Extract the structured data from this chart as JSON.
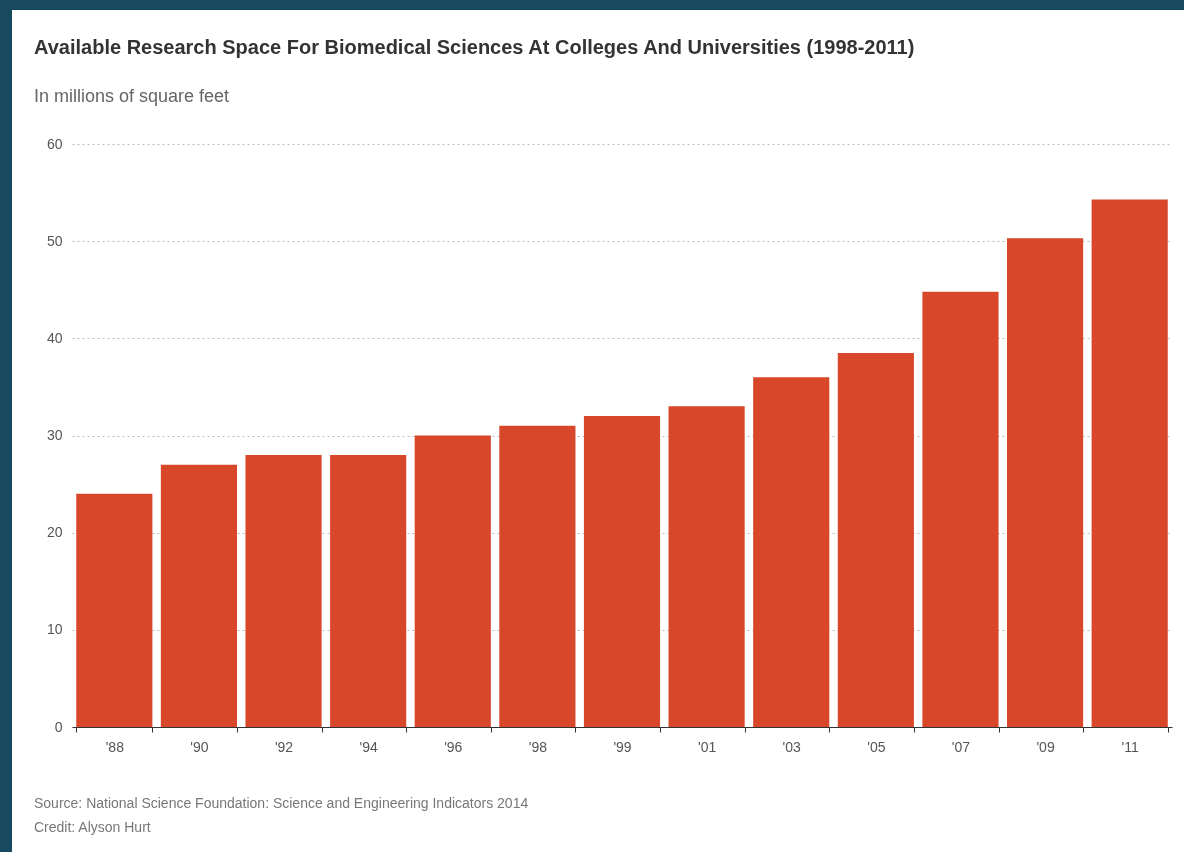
{
  "chart_data": {
    "type": "bar",
    "title": "Available Research Space For Biomedical Sciences At Colleges And Universities (1998-2011)",
    "subtitle": "In millions of square feet",
    "categories": [
      "'88",
      "'90",
      "'92",
      "'94",
      "'96",
      "'98",
      "'99",
      "'01",
      "'03",
      "'05",
      "'07",
      "'09",
      "'11"
    ],
    "values": [
      24,
      27,
      28,
      28,
      30,
      31,
      32,
      33,
      36,
      38.5,
      44.8,
      50.3,
      54.3
    ],
    "color": "#d9472b",
    "ylim": [
      0,
      60
    ],
    "yticks": [
      0,
      10,
      20,
      30,
      40,
      50,
      60
    ],
    "grid": "y",
    "annotations": [
      "Source: National Science Foundation: Science and Engineering Indicators 2014",
      "Credit: Alyson Hurt"
    ]
  }
}
